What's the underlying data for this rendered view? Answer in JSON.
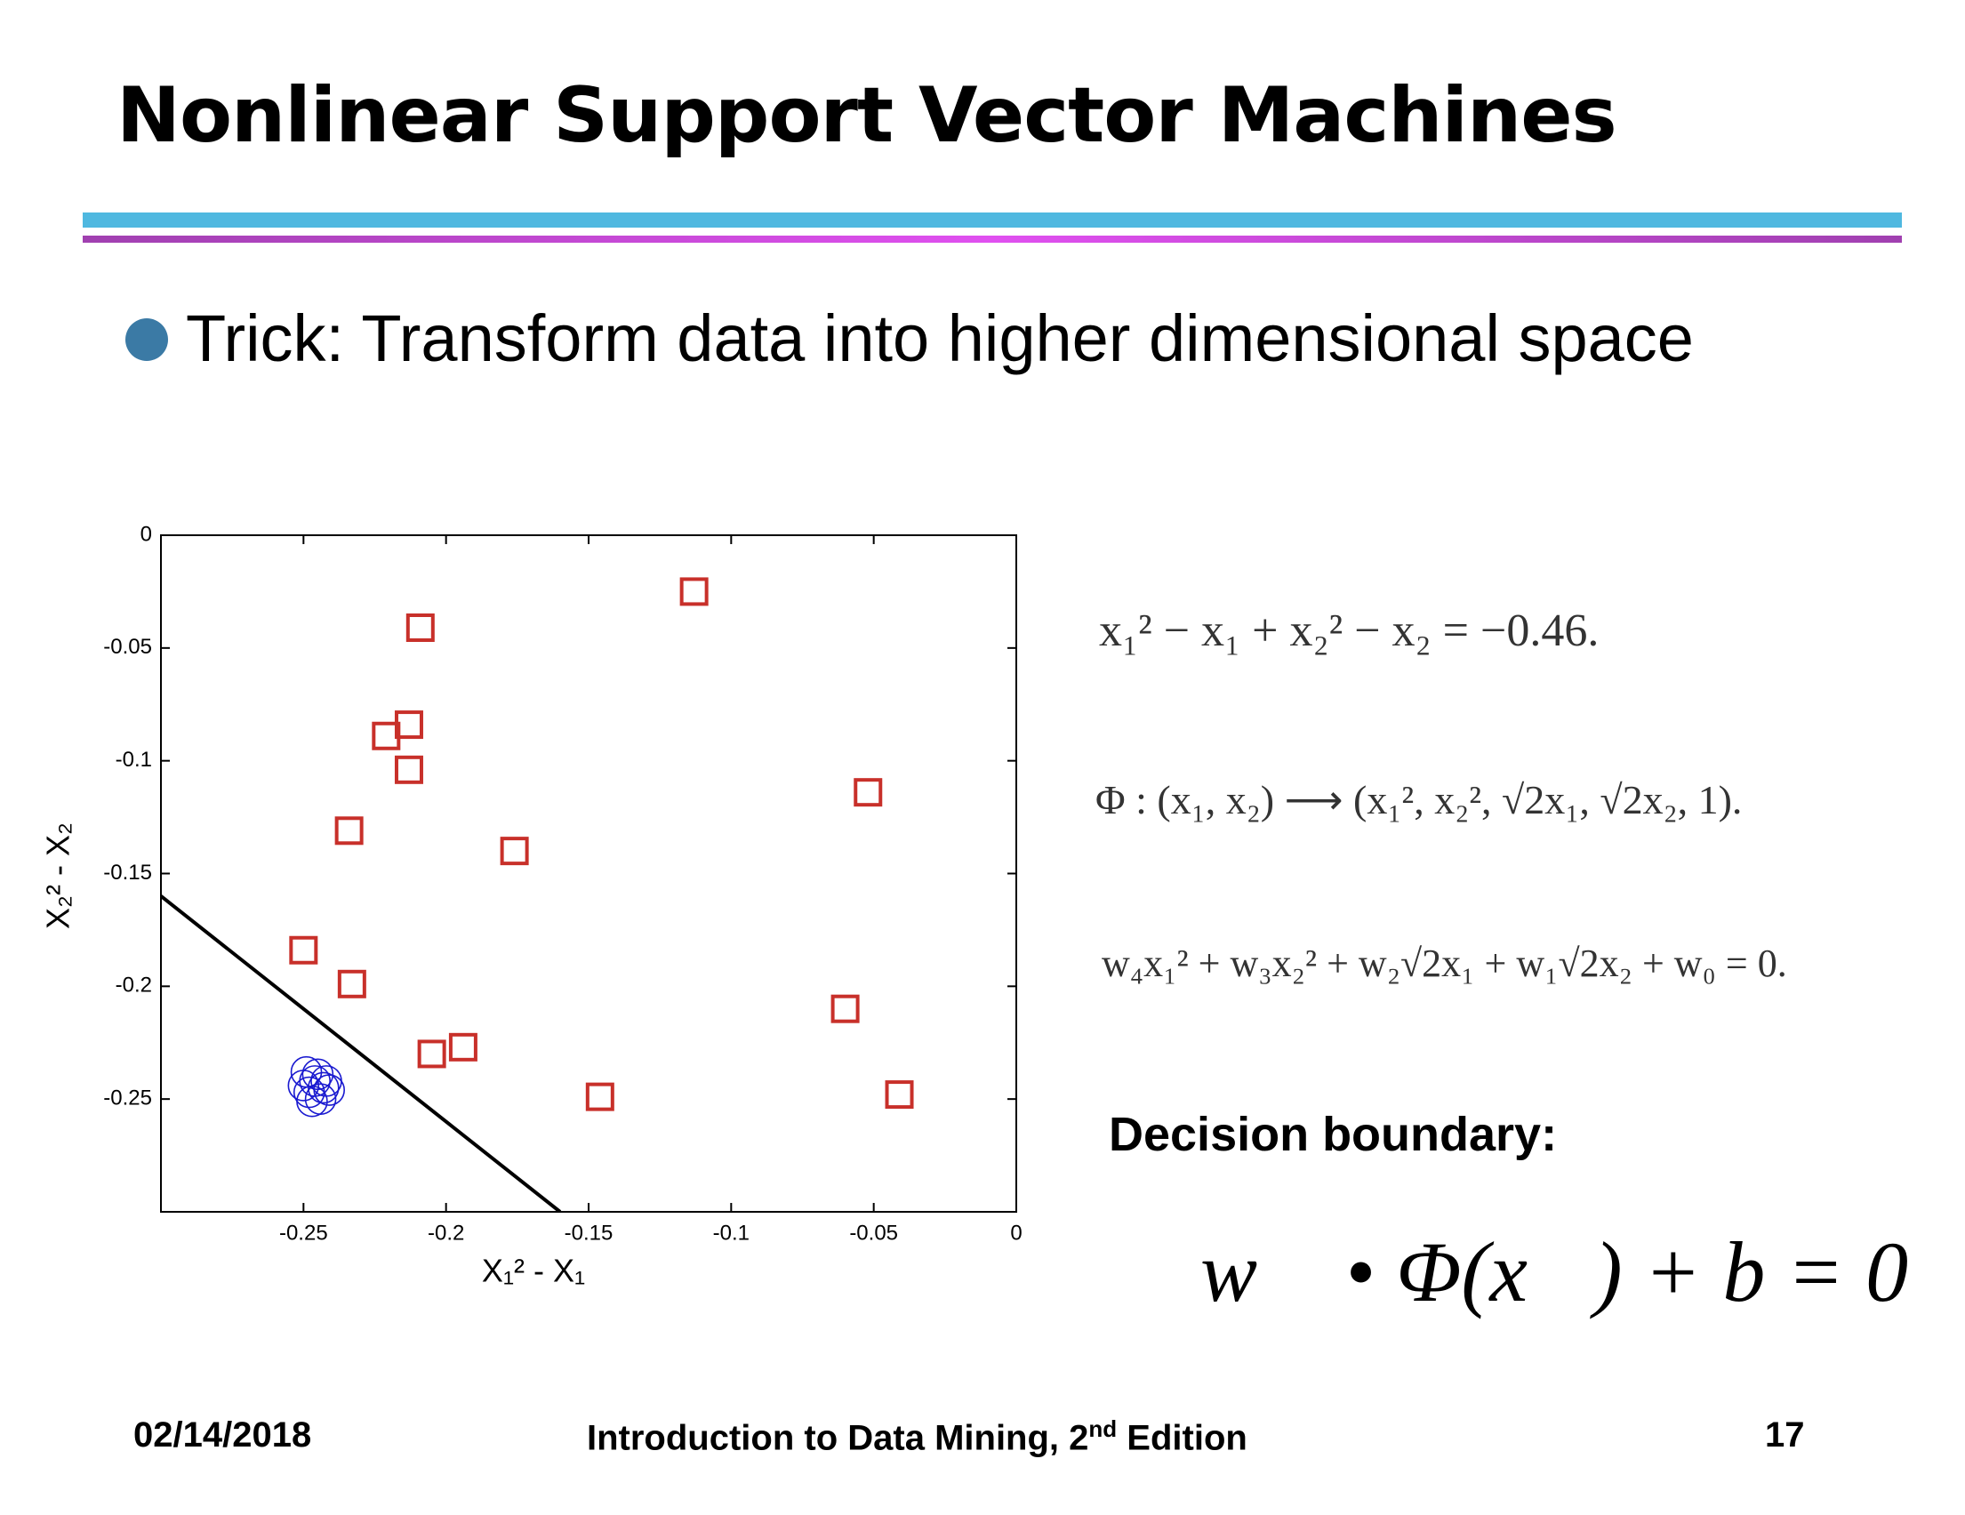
{
  "slide": {
    "title": "Nonlinear Support Vector Machines",
    "bullet": "Trick: Transform data into higher dimensional space",
    "equations": [
      "x₁² − x₁ + x₂² − x₂ = −0.46.",
      "Φ : (x₁, x₂) ⟶ (x₁², x₂², √2x₁, √2x₂, 1).",
      "w₄x₁² + w₃x₂² + w₂√2x₁ + w₁√2x₂ + w₀ = 0."
    ],
    "decision_label": "Decision boundary:",
    "decision_formula": "w⃗ • Φ(x⃗) + b = 0",
    "footer": {
      "date": "02/14/2018",
      "course": "Introduction to Data Mining, 2",
      "course_sup": "nd",
      "course_end": " Edition",
      "page": "17"
    }
  },
  "chart_data": {
    "type": "scatter",
    "x_label": "X₁² - X₁",
    "y_label": "X₂² - X₂",
    "xlim": [
      -0.3,
      0
    ],
    "ylim": [
      -0.3,
      0
    ],
    "xticks": [
      -0.25,
      -0.2,
      -0.15,
      -0.1,
      -0.05,
      0
    ],
    "yticks": [
      0,
      -0.05,
      -0.1,
      -0.15,
      -0.2,
      -0.25
    ],
    "series": [
      {
        "marker": "square",
        "color": "#c8302a",
        "x": [
          -0.113,
          -0.209,
          -0.213,
          -0.221,
          -0.213,
          -0.234,
          -0.176,
          -0.052,
          -0.25,
          -0.233,
          -0.205,
          -0.194,
          -0.146,
          -0.06,
          -0.041
        ],
        "y": [
          -0.025,
          -0.041,
          -0.084,
          -0.089,
          -0.104,
          -0.131,
          -0.14,
          -0.114,
          -0.184,
          -0.199,
          -0.23,
          -0.227,
          -0.249,
          -0.21,
          -0.248
        ]
      },
      {
        "marker": "circle",
        "color": "#1a1ad0",
        "x": [
          -0.249,
          -0.246,
          -0.243,
          -0.248,
          -0.244,
          -0.241,
          -0.25,
          -0.245,
          -0.247,
          -0.242
        ],
        "y": [
          -0.238,
          -0.242,
          -0.245,
          -0.247,
          -0.25,
          -0.246,
          -0.244,
          -0.239,
          -0.251,
          -0.242
        ]
      },
      {
        "marker": "line",
        "color": "#000000",
        "x": [
          -0.3,
          -0.16
        ],
        "y": [
          -0.16,
          -0.3
        ]
      }
    ]
  }
}
